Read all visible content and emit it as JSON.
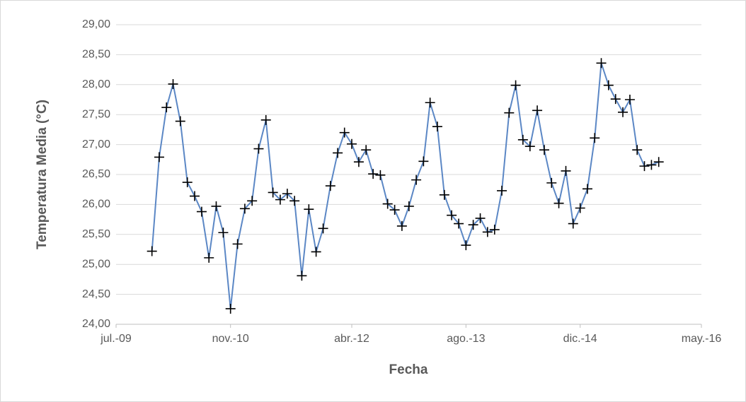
{
  "chart_data": {
    "type": "line",
    "x_label": "Fecha",
    "y_label": "Temperatura Media (°C)",
    "x": [
      "2009-12",
      "2010-01",
      "2010-02",
      "2010-03",
      "2010-04",
      "2010-05",
      "2010-06",
      "2010-07",
      "2010-08",
      "2010-09",
      "2010-10",
      "2010-11",
      "2010-12",
      "2011-01",
      "2011-02",
      "2011-03",
      "2011-04",
      "2011-05",
      "2011-06",
      "2011-07",
      "2011-08",
      "2011-09",
      "2011-10",
      "2011-11",
      "2011-12",
      "2012-01",
      "2012-02",
      "2012-03",
      "2012-04",
      "2012-05",
      "2012-06",
      "2012-07",
      "2012-08",
      "2012-09",
      "2012-10",
      "2012-11",
      "2012-12",
      "2013-01",
      "2013-02",
      "2013-03",
      "2013-04",
      "2013-05",
      "2013-06",
      "2013-07",
      "2013-08",
      "2013-09",
      "2013-10",
      "2013-11",
      "2013-12",
      "2014-01",
      "2014-02",
      "2014-03",
      "2014-04",
      "2014-05",
      "2014-06",
      "2014-07",
      "2014-08",
      "2014-09",
      "2014-10",
      "2014-11",
      "2014-12",
      "2015-01",
      "2015-02",
      "2015-03",
      "2015-04",
      "2015-05",
      "2015-06",
      "2015-07",
      "2015-08",
      "2015-09",
      "2015-10",
      "2015-11"
    ],
    "series": [
      {
        "color": "#5b87c5",
        "marker_color": "#000000",
        "values": [
          25.22,
          26.79,
          27.62,
          28.01,
          27.39,
          26.37,
          26.14,
          25.88,
          25.11,
          25.97,
          25.53,
          24.26,
          25.34,
          25.93,
          26.06,
          26.93,
          27.41,
          26.2,
          26.08,
          26.18,
          26.06,
          24.81,
          25.92,
          25.21,
          25.6,
          26.31,
          26.86,
          27.2,
          27.01,
          26.71,
          26.91,
          26.51,
          26.49,
          26.01,
          25.91,
          25.64,
          25.97,
          26.41,
          26.72,
          27.7,
          27.3,
          26.16,
          25.82,
          25.68,
          25.32,
          25.66,
          25.77,
          25.54,
          25.58,
          26.23,
          27.53,
          27.99,
          27.08,
          26.97,
          27.57,
          26.91,
          26.36,
          26.02,
          26.56,
          25.68,
          25.94,
          26.26,
          27.11,
          28.36,
          27.99,
          27.76,
          27.54,
          27.75,
          26.91,
          26.64,
          26.66,
          26.71
        ]
      }
    ],
    "xlim": [
      "2009-07",
      "2016-05"
    ],
    "xticks": [
      {
        "value": "2009-07",
        "label": "jul.-09"
      },
      {
        "value": "2010-11",
        "label": "nov.-10"
      },
      {
        "value": "2012-04",
        "label": "abr.-12"
      },
      {
        "value": "2013-08",
        "label": "ago.-13"
      },
      {
        "value": "2014-12",
        "label": "dic.-14"
      },
      {
        "value": "2016-05",
        "label": "may.-16"
      }
    ],
    "ylim": [
      24,
      29
    ],
    "yticks": [
      {
        "value": 24,
        "label": "24,00"
      },
      {
        "value": 24.5,
        "label": "24,50"
      },
      {
        "value": 25,
        "label": "25,00"
      },
      {
        "value": 25.5,
        "label": "25,50"
      },
      {
        "value": 26,
        "label": "26,00"
      },
      {
        "value": 26.5,
        "label": "26,50"
      },
      {
        "value": 27,
        "label": "27,00"
      },
      {
        "value": 27.5,
        "label": "27,50"
      },
      {
        "value": 28,
        "label": "28,00"
      },
      {
        "value": 28.5,
        "label": "28,50"
      },
      {
        "value": 29,
        "label": "29,00"
      }
    ],
    "grid": true
  }
}
